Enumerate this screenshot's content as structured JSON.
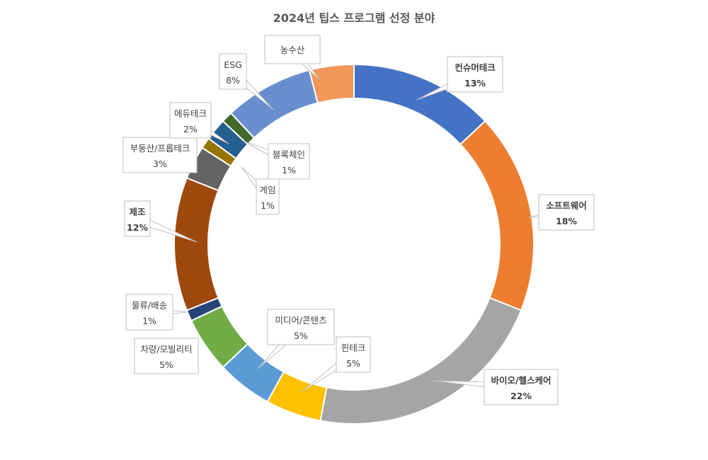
{
  "chart_data": {
    "type": "pie",
    "variant": "donut",
    "title": "2024년 팁스 프로그램 선정 분야",
    "legend": "none",
    "slices": [
      {
        "name": "컨슈머테크",
        "value": 13,
        "label": "13%",
        "color": "#4472C4",
        "bold": true
      },
      {
        "name": "소프트웨어",
        "value": 18,
        "label": "18%",
        "color": "#ED7D31",
        "bold": true
      },
      {
        "name": "바이오/헬스케어",
        "value": 22,
        "label": "22%",
        "color": "#A5A5A5",
        "bold": true
      },
      {
        "name": "핀테크",
        "value": 5,
        "label": "5%",
        "color": "#FFC000",
        "bold": false
      },
      {
        "name": "미디어/콘텐츠",
        "value": 5,
        "label": "5%",
        "color": "#5B9BD5",
        "bold": false
      },
      {
        "name": "차량/모빌리티",
        "value": 5,
        "label": "5%",
        "color": "#70AD47",
        "bold": false
      },
      {
        "name": "물류/배송",
        "value": 1,
        "label": "1%",
        "color": "#264478",
        "bold": false
      },
      {
        "name": "제조",
        "value": 12,
        "label": "12%",
        "color": "#9E480E",
        "bold": true
      },
      {
        "name": "부동산/프롭테크",
        "value": 3,
        "label": "3%",
        "color": "#636363",
        "bold": false
      },
      {
        "name": "게임",
        "value": 1,
        "label": "1%",
        "color": "#997300",
        "bold": false
      },
      {
        "name": "에듀테크",
        "value": 2,
        "label": "2%",
        "color": "#255E91",
        "bold": false
      },
      {
        "name": "블록체인",
        "value": 1,
        "label": "1%",
        "color": "#43682B",
        "bold": false
      },
      {
        "name": "ESG",
        "value": 8,
        "label": "8%",
        "color": "#698ED0",
        "bold": false
      },
      {
        "name": "농수산",
        "value": 4,
        "label": "",
        "color": "#F1975A",
        "bold": false
      }
    ]
  }
}
